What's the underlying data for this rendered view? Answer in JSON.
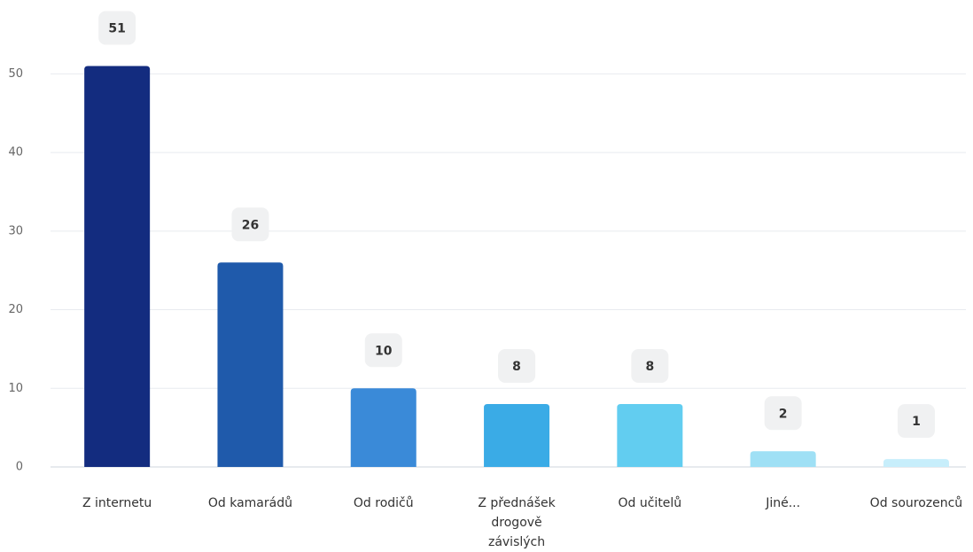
{
  "chart_data": {
    "type": "bar",
    "categories": [
      "Z internetu",
      "Od kamarádů",
      "Od rodičů",
      "Z přednášek drogově závislých",
      "Od učitelů",
      "Jiné...",
      "Od sourozenců"
    ],
    "values": [
      51,
      26,
      10,
      8,
      8,
      2,
      1
    ],
    "colors": [
      "#132c7f",
      "#1f5aab",
      "#3a8ad8",
      "#3aabe6",
      "#62cdf0",
      "#9fe0f5",
      "#c7eefb"
    ],
    "ylim": [
      0,
      55
    ],
    "yticks": [
      0,
      10,
      20,
      30,
      40,
      50
    ],
    "grid": true
  }
}
